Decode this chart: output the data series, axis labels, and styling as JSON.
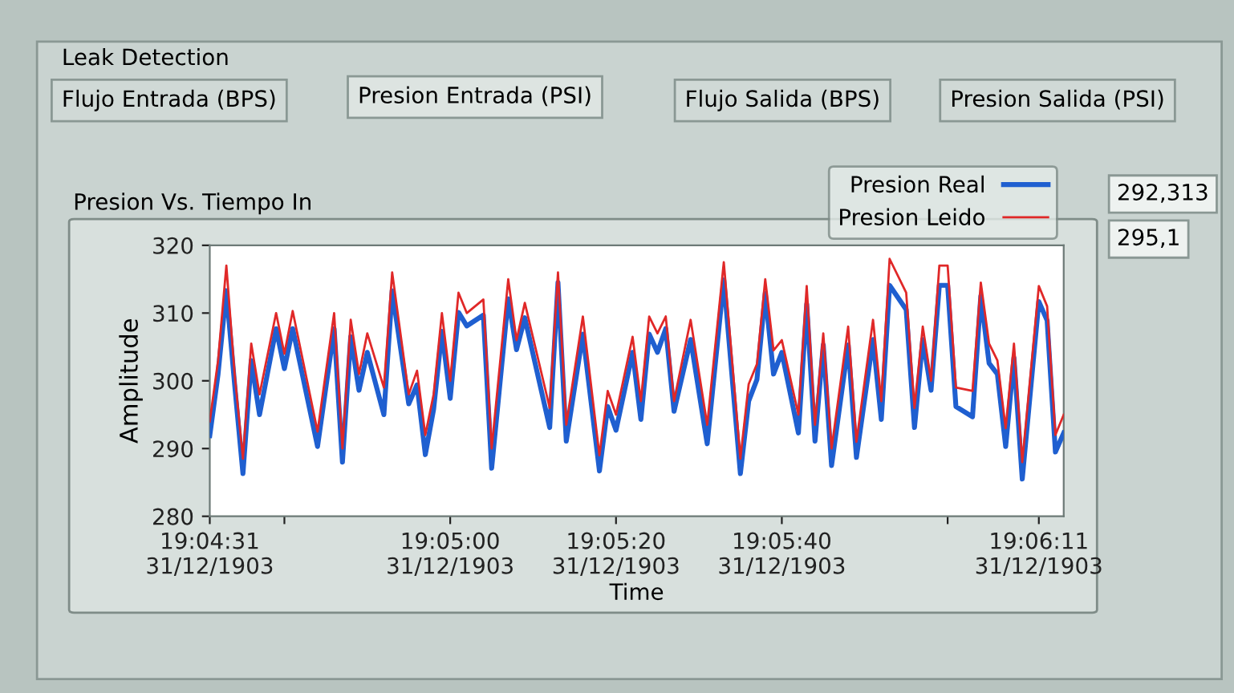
{
  "chart_data": {
    "type": "line",
    "title": "Presion Vs. Tiempo In",
    "xlabel": "Time",
    "ylabel": "Amplitude",
    "x": [
      "1903-12-31T19:04:31",
      "1903-12-31T19:04:32",
      "1903-12-31T19:04:33",
      "1903-12-31T19:04:34",
      "1903-12-31T19:04:35",
      "1903-12-31T19:04:36",
      "1903-12-31T19:04:37",
      "1903-12-31T19:04:39",
      "1903-12-31T19:04:40",
      "1903-12-31T19:04:41",
      "1903-12-31T19:04:44",
      "1903-12-31T19:04:46",
      "1903-12-31T19:04:47",
      "1903-12-31T19:04:48",
      "1903-12-31T19:04:49",
      "1903-12-31T19:04:50",
      "1903-12-31T19:04:52",
      "1903-12-31T19:04:53",
      "1903-12-31T19:04:55",
      "1903-12-31T19:04:56",
      "1903-12-31T19:04:57",
      "1903-12-31T19:04:58",
      "1903-12-31T19:04:59",
      "1903-12-31T19:05:00",
      "1903-12-31T19:05:01",
      "1903-12-31T19:05:02",
      "1903-12-31T19:05:04",
      "1903-12-31T19:05:05",
      "1903-12-31T19:05:07",
      "1903-12-31T19:05:08",
      "1903-12-31T19:05:09",
      "1903-12-31T19:05:12",
      "1903-12-31T19:05:13",
      "1903-12-31T19:05:14",
      "1903-12-31T19:05:16",
      "1903-12-31T19:05:18",
      "1903-12-31T19:05:19",
      "1903-12-31T19:05:20",
      "1903-12-31T19:05:22",
      "1903-12-31T19:05:23",
      "1903-12-31T19:05:24",
      "1903-12-31T19:05:25",
      "1903-12-31T19:05:26",
      "1903-12-31T19:05:27",
      "1903-12-31T19:05:29",
      "1903-12-31T19:05:31",
      "1903-12-31T19:05:33",
      "1903-12-31T19:05:35",
      "1903-12-31T19:05:36",
      "1903-12-31T19:05:37",
      "1903-12-31T19:05:38",
      "1903-12-31T19:05:39",
      "1903-12-31T19:05:40",
      "1903-12-31T19:05:42",
      "1903-12-31T19:05:43",
      "1903-12-31T19:05:44",
      "1903-12-31T19:05:45",
      "1903-12-31T19:05:46",
      "1903-12-31T19:05:48",
      "1903-12-31T19:05:49",
      "1903-12-31T19:05:51",
      "1903-12-31T19:05:52",
      "1903-12-31T19:05:53",
      "1903-12-31T19:05:55",
      "1903-12-31T19:05:56",
      "1903-12-31T19:05:57",
      "1903-12-31T19:05:58",
      "1903-12-31T19:05:59",
      "1903-12-31T19:06:00",
      "1903-12-31T19:06:01",
      "1903-12-31T19:06:03",
      "1903-12-31T19:06:04",
      "1903-12-31T19:06:05",
      "1903-12-31T19:06:06",
      "1903-12-31T19:06:07",
      "1903-12-31T19:06:08",
      "1903-12-31T19:06:09",
      "1903-12-31T19:06:11",
      "1903-12-31T19:06:12",
      "1903-12-31T19:06:13",
      "1903-12-31T19:06:14"
    ],
    "series": [
      {
        "name": "Presion Real",
        "color": "#1f5fd0",
        "values": [
          291.9,
          301,
          313.3,
          299.4,
          286.3,
          303,
          295,
          307.7,
          301.8,
          307.7,
          290.3,
          307.7,
          288,
          306.5,
          298.6,
          304.2,
          295,
          313.3,
          296.6,
          299.4,
          289.1,
          295.8,
          307.3,
          297.4,
          310.1,
          308.1,
          309.7,
          287.1,
          312.1,
          304.6,
          309.3,
          293.1,
          314.5,
          291.1,
          306.9,
          286.7,
          296.2,
          292.7,
          304.2,
          294.3,
          306.9,
          304.2,
          307.7,
          295.5,
          306.1,
          290.7,
          314.9,
          286.3,
          297,
          300.2,
          312.9,
          301,
          304.2,
          292.3,
          311.3,
          291.1,
          305.3,
          287.5,
          305.3,
          288.7,
          306.1,
          294.3,
          314.1,
          310.5,
          293.1,
          306.1,
          298.6,
          314.1,
          314.1,
          296.2,
          294.7,
          312.5,
          302.6,
          301,
          290.3,
          303.4,
          285.5,
          311.7,
          308.9,
          289.5,
          292.3
        ]
      },
      {
        "name": "Presion Leido",
        "color": "#e02828",
        "values": [
          294,
          303,
          317,
          301,
          288.5,
          305.5,
          298,
          310,
          304,
          310.3,
          292.5,
          310,
          290,
          309,
          301,
          307,
          299,
          316,
          298,
          301.5,
          292,
          298,
          310,
          300,
          313,
          310,
          312,
          290,
          315,
          306,
          311.5,
          296,
          316,
          293.5,
          309.5,
          289,
          298.5,
          295,
          306.5,
          297,
          309.5,
          307,
          309.5,
          297,
          309,
          293.5,
          317.5,
          288.5,
          299.5,
          302.5,
          315,
          304.5,
          306,
          295,
          314,
          293.5,
          307,
          290,
          308,
          291,
          309,
          297,
          318,
          313,
          296,
          308,
          300,
          317,
          317,
          299,
          298.5,
          314.5,
          305.5,
          303,
          293,
          305.5,
          288,
          314,
          311,
          292,
          295
        ]
      }
    ],
    "xlim": [
      "1903-12-31T19:04:31",
      "1903-12-31T19:06:14"
    ],
    "xticks": [
      {
        "value": "1903-12-31T19:04:31",
        "label": "19:04:31\n31/12/1903"
      },
      {
        "value": "1903-12-31T19:04:40",
        "label": null
      },
      {
        "value": "1903-12-31T19:05:00",
        "label": "19:05:00\n31/12/1903"
      },
      {
        "value": "1903-12-31T19:05:20",
        "label": "19:05:20\n31/12/1903"
      },
      {
        "value": "1903-12-31T19:05:40",
        "label": "19:05:40\n31/12/1903"
      },
      {
        "value": "1903-12-31T19:06:00",
        "label": null
      },
      {
        "value": "1903-12-31T19:06:11",
        "label": "19:06:11\n31/12/1903"
      }
    ],
    "ylim": [
      280,
      320
    ],
    "yticks": [
      280,
      290,
      300,
      310,
      320
    ],
    "grid": false,
    "legend": "top right",
    "marker": "none",
    "line_style": "solid",
    "annotations": [
      "Leak Detection",
      "Flujo Entrada (BPS)",
      "Presion Entrada (PSI)",
      "Flujo Salida (BPS)",
      "Presion Salida (PSI)",
      "292,313",
      "295,1"
    ]
  }
}
